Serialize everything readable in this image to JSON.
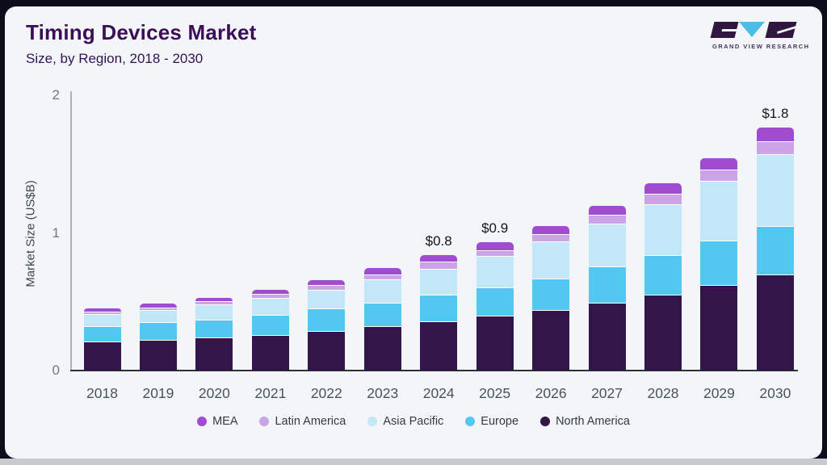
{
  "header": {
    "title": "Timing Devices Market",
    "subtitle": "Size, by Region, 2018 - 2030"
  },
  "logo": {
    "caption": "GRAND VIEW RESEARCH",
    "mark_dark_color": "#31173f",
    "mark_blue_color": "#49bfe8"
  },
  "chart_data": {
    "type": "bar",
    "stacked": true,
    "title": "Timing Devices Market",
    "subtitle": "Size, by Region, 2018 - 2030",
    "xlabel": "",
    "ylabel": "Market Size (US$B)",
    "ylim": [
      0,
      2
    ],
    "yticks": [
      "0",
      "1",
      "2"
    ],
    "grid": false,
    "legend_position": "bottom",
    "categories": [
      "2018",
      "2019",
      "2020",
      "2021",
      "2022",
      "2023",
      "2024",
      "2025",
      "2026",
      "2027",
      "2028",
      "2029",
      "2030"
    ],
    "series": [
      {
        "name": "North America",
        "color": "#321549",
        "values": [
          0.21,
          0.22,
          0.24,
          0.26,
          0.29,
          0.32,
          0.36,
          0.4,
          0.44,
          0.49,
          0.55,
          0.62,
          0.7
        ]
      },
      {
        "name": "Europe",
        "color": "#52c7ef",
        "values": [
          0.11,
          0.13,
          0.13,
          0.145,
          0.16,
          0.175,
          0.19,
          0.205,
          0.23,
          0.265,
          0.29,
          0.325,
          0.35
        ]
      },
      {
        "name": "Asia Pacific",
        "color": "#c2e7f8",
        "values": [
          0.09,
          0.09,
          0.11,
          0.125,
          0.135,
          0.165,
          0.19,
          0.225,
          0.27,
          0.31,
          0.37,
          0.435,
          0.52
        ]
      },
      {
        "name": "Latin America",
        "color": "#cda3e8",
        "values": [
          0.02,
          0.02,
          0.025,
          0.025,
          0.035,
          0.04,
          0.05,
          0.045,
          0.05,
          0.065,
          0.075,
          0.08,
          0.095
        ]
      },
      {
        "name": "MEA",
        "color": "#a04ccf",
        "values": [
          0.02,
          0.025,
          0.025,
          0.03,
          0.035,
          0.045,
          0.05,
          0.055,
          0.06,
          0.065,
          0.075,
          0.085,
          0.1
        ]
      }
    ],
    "legend": [
      "MEA",
      "Latin America",
      "Asia Pacific",
      "Europe",
      "North America"
    ],
    "annotations": [
      {
        "category": "2024",
        "label": "$0.8"
      },
      {
        "category": "2025",
        "label": "$0.9"
      },
      {
        "category": "2030",
        "label": "$1.8"
      }
    ]
  }
}
